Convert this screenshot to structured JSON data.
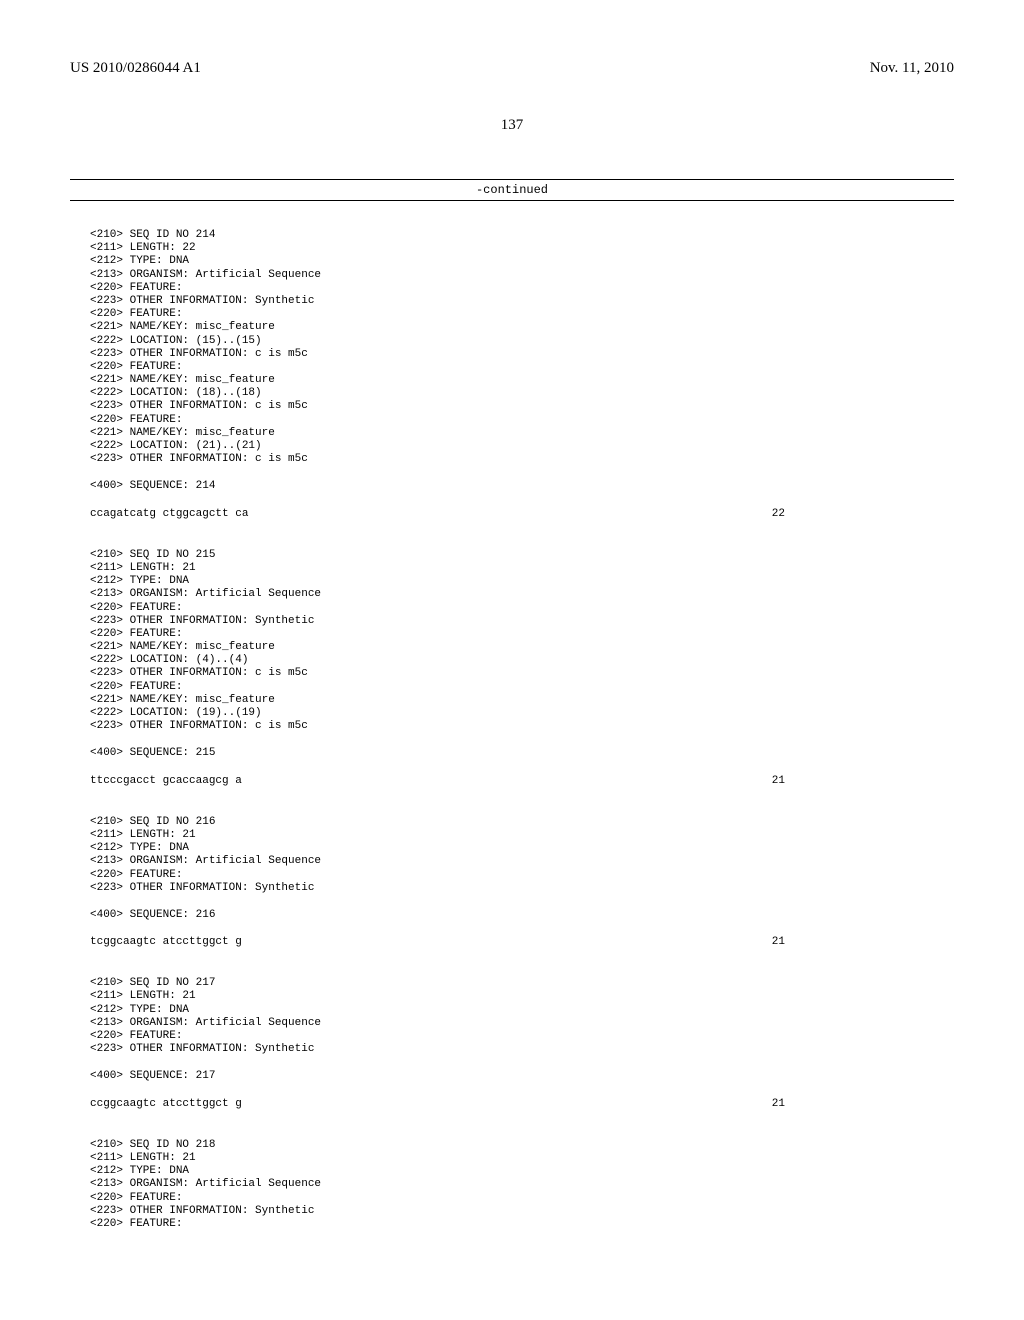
{
  "header": {
    "publication_number": "US 2010/0286044 A1",
    "date": "Nov. 11, 2010"
  },
  "page_number": "137",
  "continued_label": "-continued",
  "entries": [
    {
      "meta": [
        "<210> SEQ ID NO 214",
        "<211> LENGTH: 22",
        "<212> TYPE: DNA",
        "<213> ORGANISM: Artificial Sequence",
        "<220> FEATURE:",
        "<223> OTHER INFORMATION: Synthetic",
        "<220> FEATURE:",
        "<221> NAME/KEY: misc_feature",
        "<222> LOCATION: (15)..(15)",
        "<223> OTHER INFORMATION: c is m5c",
        "<220> FEATURE:",
        "<221> NAME/KEY: misc_feature",
        "<222> LOCATION: (18)..(18)",
        "<223> OTHER INFORMATION: c is m5c",
        "<220> FEATURE:",
        "<221> NAME/KEY: misc_feature",
        "<222> LOCATION: (21)..(21)",
        "<223> OTHER INFORMATION: c is m5c"
      ],
      "seq_label": "<400> SEQUENCE: 214",
      "sequence": "ccagatcatg ctggcagctt ca",
      "seq_length": "22"
    },
    {
      "meta": [
        "<210> SEQ ID NO 215",
        "<211> LENGTH: 21",
        "<212> TYPE: DNA",
        "<213> ORGANISM: Artificial Sequence",
        "<220> FEATURE:",
        "<223> OTHER INFORMATION: Synthetic",
        "<220> FEATURE:",
        "<221> NAME/KEY: misc_feature",
        "<222> LOCATION: (4)..(4)",
        "<223> OTHER INFORMATION: c is m5c",
        "<220> FEATURE:",
        "<221> NAME/KEY: misc_feature",
        "<222> LOCATION: (19)..(19)",
        "<223> OTHER INFORMATION: c is m5c"
      ],
      "seq_label": "<400> SEQUENCE: 215",
      "sequence": "ttcccgacct gcaccaagcg a",
      "seq_length": "21"
    },
    {
      "meta": [
        "<210> SEQ ID NO 216",
        "<211> LENGTH: 21",
        "<212> TYPE: DNA",
        "<213> ORGANISM: Artificial Sequence",
        "<220> FEATURE:",
        "<223> OTHER INFORMATION: Synthetic"
      ],
      "seq_label": "<400> SEQUENCE: 216",
      "sequence": "tcggcaagtc atccttggct g",
      "seq_length": "21"
    },
    {
      "meta": [
        "<210> SEQ ID NO 217",
        "<211> LENGTH: 21",
        "<212> TYPE: DNA",
        "<213> ORGANISM: Artificial Sequence",
        "<220> FEATURE:",
        "<223> OTHER INFORMATION: Synthetic"
      ],
      "seq_label": "<400> SEQUENCE: 217",
      "sequence": "ccggcaagtc atccttggct g",
      "seq_length": "21"
    },
    {
      "meta": [
        "<210> SEQ ID NO 218",
        "<211> LENGTH: 21",
        "<212> TYPE: DNA",
        "<213> ORGANISM: Artificial Sequence",
        "<220> FEATURE:",
        "<223> OTHER INFORMATION: Synthetic",
        "<220> FEATURE:"
      ],
      "seq_label": "",
      "sequence": "",
      "seq_length": ""
    }
  ]
}
